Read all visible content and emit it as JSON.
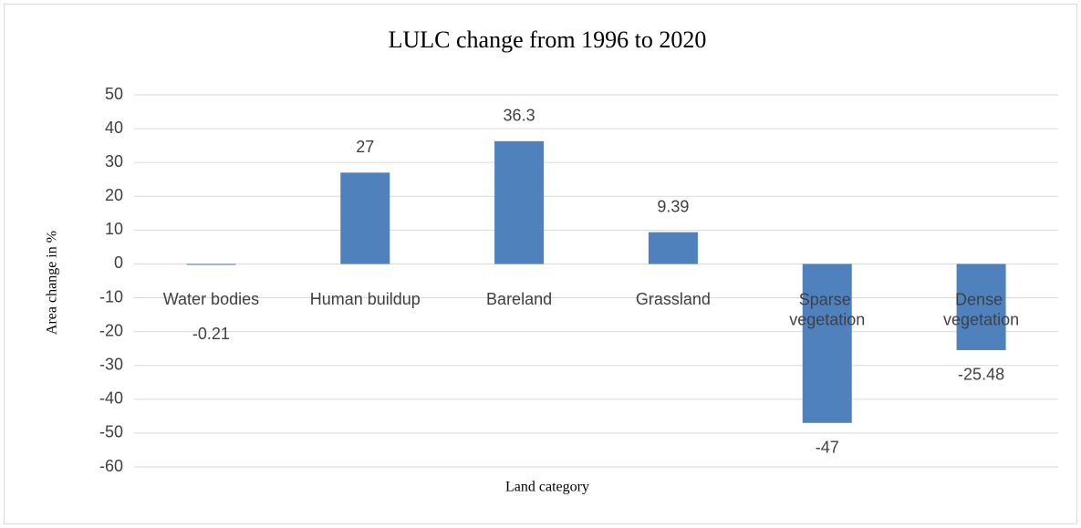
{
  "chart_data": {
    "type": "bar",
    "title": "LULC change from 1996 to 2020",
    "x_label": "Land category",
    "y_label": "Area change in %",
    "categories": [
      "Water bodies",
      "Human buildup",
      "Bareland",
      "Grassland",
      "Sparse vegetation",
      "Dense vegetation"
    ],
    "values": [
      -0.21,
      27,
      36.3,
      9.39,
      -47,
      -25.48
    ],
    "color": "#4f81bd",
    "ylim": [
      -60,
      50
    ],
    "yticks": [
      -60,
      -50,
      -40,
      -30,
      -20,
      -10,
      0,
      10,
      20,
      30,
      40,
      50
    ],
    "grid": true
  }
}
